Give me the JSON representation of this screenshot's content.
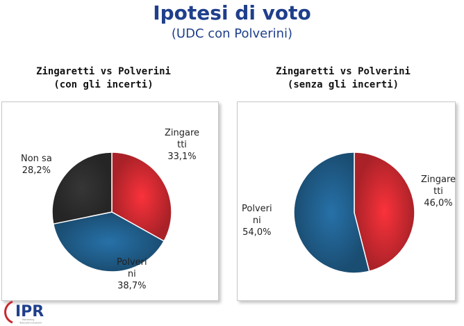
{
  "header": {
    "title": "Ipotesi di voto",
    "subtitle": "(UDC con Polverini)"
  },
  "logo": {
    "text": "IPR",
    "tagline_1": "Marketing",
    "tagline_2": "Telecomunicazioni"
  },
  "chart_data": [
    {
      "type": "pie",
      "title": [
        "Zingaretti vs Polverini",
        "(con gli incerti)"
      ],
      "slices": [
        {
          "label": [
            "Zingare",
            "tti",
            "33,1%"
          ],
          "value": 33.1,
          "color": "#c8282f"
        },
        {
          "label": [
            "Polveri",
            "ni",
            "38,7%"
          ],
          "value": 38.7,
          "color": "#1f5a86"
        },
        {
          "label": [
            "Non sa",
            "28,2%"
          ],
          "value": 28.2,
          "color": "#2b2b2b"
        }
      ]
    },
    {
      "type": "pie",
      "title": [
        "Zingaretti vs Polverini",
        "(senza gli incerti)"
      ],
      "slices": [
        {
          "label": [
            "Zingare",
            "tti",
            "46,0%"
          ],
          "value": 46.0,
          "color": "#c8282f"
        },
        {
          "label": [
            "Polveri",
            "ni",
            "54,0%"
          ],
          "value": 54.0,
          "color": "#1f5a86"
        }
      ]
    }
  ]
}
